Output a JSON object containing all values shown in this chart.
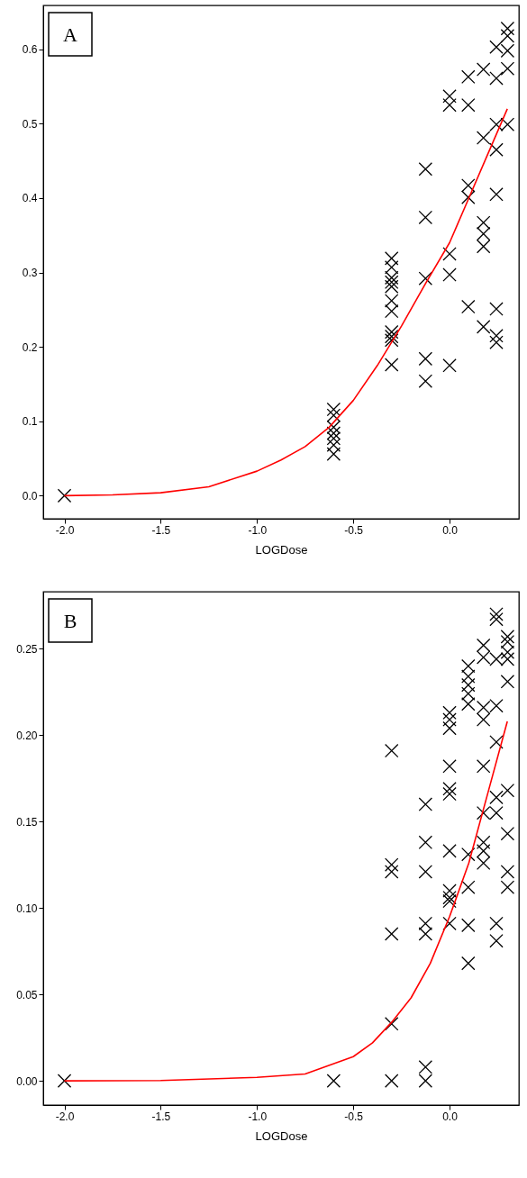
{
  "chart_data": [
    {
      "type": "scatter",
      "xlabel": "LOGDose",
      "annotations": [
        "A"
      ],
      "grid": false,
      "xlim": [
        -2.11,
        0.36
      ],
      "ylim": [
        -0.031,
        0.659
      ],
      "xticks": [
        {
          "value": -2,
          "label": "-2.0"
        },
        {
          "value": -1.5,
          "label": "-1.5"
        },
        {
          "value": -1,
          "label": "-1.0"
        },
        {
          "value": -0.5,
          "label": "-0.5"
        },
        {
          "value": 0,
          "label": "0.0"
        }
      ],
      "yticks": [
        {
          "value": 0,
          "label": "0.0"
        },
        0.1,
        0.2,
        0.3,
        0.4,
        0.5,
        0.6
      ],
      "series": [
        {
          "marker": "cross",
          "color": "#000000",
          "x": [
            -2,
            -0.602,
            -0.602,
            -0.602,
            -0.602,
            -0.602,
            -0.602,
            -0.602,
            -0.301,
            -0.301,
            -0.301,
            -0.301,
            -0.301,
            -0.301,
            -0.301,
            -0.301,
            -0.301,
            -0.301,
            -0.301,
            -0.125,
            -0.125,
            -0.125,
            -0.125,
            -0.125,
            0,
            0,
            0,
            0,
            0,
            0.097,
            0.097,
            0.097,
            0.097,
            0.097,
            0.176,
            0.176,
            0.176,
            0.176,
            0.176,
            0.176,
            0.243,
            0.243,
            0.243,
            0.243,
            0.243,
            0.243,
            0.243,
            0.243,
            0.301,
            0.301,
            0.301,
            0.301,
            0.301
          ],
          "values": [
            0,
            0.116,
            0.108,
            0.092,
            0.084,
            0.077,
            0.068,
            0.056,
            0.319,
            0.307,
            0.293,
            0.287,
            0.281,
            0.262,
            0.248,
            0.22,
            0.214,
            0.209,
            0.176,
            0.439,
            0.374,
            0.292,
            0.184,
            0.154,
            0.537,
            0.525,
            0.325,
            0.297,
            0.175,
            0.563,
            0.525,
            0.417,
            0.401,
            0.254,
            0.573,
            0.481,
            0.367,
            0.352,
            0.335,
            0.227,
            0.603,
            0.561,
            0.499,
            0.465,
            0.405,
            0.251,
            0.215,
            0.206,
            0.628,
            0.618,
            0.598,
            0.574,
            0.499
          ]
        },
        {
          "type": "line",
          "color": "#ff0000",
          "x": [
            -2,
            -1.75,
            -1.5,
            -1.25,
            -1,
            -0.875,
            -0.75,
            -0.625,
            -0.5,
            -0.375,
            -0.25,
            -0.125,
            0,
            0.1,
            0.2,
            0.3
          ],
          "values": [
            0,
            0.001,
            0.004,
            0.012,
            0.033,
            0.048,
            0.066,
            0.092,
            0.128,
            0.175,
            0.228,
            0.285,
            0.34,
            0.4,
            0.46,
            0.52
          ]
        }
      ]
    },
    {
      "type": "scatter",
      "xlabel": "LOGDose",
      "annotations": [
        "B"
      ],
      "grid": false,
      "xlim": [
        -2.11,
        0.36
      ],
      "ylim": [
        -0.014,
        0.283
      ],
      "xticks": [
        {
          "value": -2,
          "label": "-2.0"
        },
        {
          "value": -1.5,
          "label": "-1.5"
        },
        {
          "value": -1,
          "label": "-1.0"
        },
        {
          "value": -0.5,
          "label": "-0.5"
        },
        {
          "value": 0,
          "label": "0.0"
        }
      ],
      "yticks": [
        {
          "value": 0,
          "label": "0.00"
        },
        0.05,
        {
          "value": 0.1,
          "label": "0.10"
        },
        0.15,
        {
          "value": 0.2,
          "label": "0.20"
        },
        0.25
      ],
      "series": [
        {
          "marker": "cross",
          "color": "#000000",
          "x": [
            -2,
            -0.602,
            -0.301,
            -0.301,
            -0.301,
            -0.301,
            -0.301,
            -0.301,
            -0.125,
            -0.125,
            -0.125,
            -0.125,
            -0.125,
            -0.125,
            -0.125,
            0,
            0,
            0,
            0,
            0,
            0,
            0,
            0,
            0,
            0,
            0,
            0.097,
            0.097,
            0.097,
            0.097,
            0.097,
            0.097,
            0.097,
            0.097,
            0.097,
            0.176,
            0.176,
            0.176,
            0.176,
            0.176,
            0.176,
            0.176,
            0.176,
            0.176,
            0.243,
            0.243,
            0.243,
            0.243,
            0.243,
            0.243,
            0.243,
            0.243,
            0.243,
            0.301,
            0.301,
            0.301,
            0.301,
            0.301,
            0.301,
            0.301,
            0.301,
            0.301
          ],
          "values": [
            0,
            0,
            0.191,
            0.125,
            0.121,
            0.085,
            0.033,
            0,
            0.16,
            0.138,
            0.121,
            0.091,
            0.085,
            0.008,
            0,
            0.213,
            0.209,
            0.204,
            0.182,
            0.169,
            0.166,
            0.133,
            0.11,
            0.106,
            0.104,
            0.091,
            0.24,
            0.234,
            0.229,
            0.224,
            0.218,
            0.131,
            0.112,
            0.09,
            0.068,
            0.252,
            0.245,
            0.216,
            0.209,
            0.182,
            0.155,
            0.138,
            0.133,
            0.126,
            0.27,
            0.267,
            0.244,
            0.217,
            0.196,
            0.164,
            0.155,
            0.091,
            0.081,
            0.257,
            0.254,
            0.248,
            0.244,
            0.231,
            0.168,
            0.143,
            0.121,
            0.112
          ]
        },
        {
          "type": "line",
          "color": "#ff0000",
          "x": [
            -2,
            -1.5,
            -1,
            -0.75,
            -0.5,
            -0.4,
            -0.3,
            -0.2,
            -0.1,
            0,
            0.1,
            0.2,
            0.3
          ],
          "values": [
            0,
            0.0002,
            0.002,
            0.004,
            0.014,
            0.022,
            0.034,
            0.048,
            0.068,
            0.095,
            0.126,
            0.167,
            0.208
          ]
        }
      ]
    }
  ]
}
